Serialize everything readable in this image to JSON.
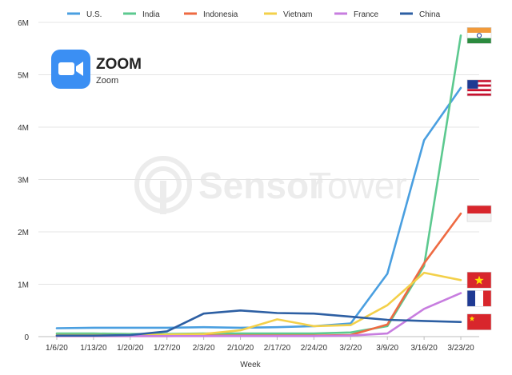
{
  "app": {
    "name": "ZOOM",
    "subtitle": "Zoom",
    "icon_color": "#3b8ff3"
  },
  "watermark": {
    "text_a": "Sensor",
    "text_b": "Tower"
  },
  "chart_data": {
    "type": "line",
    "title": "",
    "xlabel": "Week",
    "ylabel": "",
    "categories": [
      "1/6/20",
      "1/13/20",
      "1/20/20",
      "1/27/20",
      "2/3/20",
      "2/10/20",
      "2/17/20",
      "2/24/20",
      "3/2/20",
      "3/9/20",
      "3/16/20",
      "3/23/20"
    ],
    "ylim": [
      0,
      6000000
    ],
    "yticks": [
      0,
      1000000,
      2000000,
      3000000,
      4000000,
      5000000,
      6000000
    ],
    "ytick_labels": [
      "0",
      "1M",
      "2M",
      "3M",
      "4M",
      "5M",
      "6M"
    ],
    "grid": true,
    "legend_position": "top",
    "series": [
      {
        "name": "U.S.",
        "color": "#4a9fe0",
        "flag": "us",
        "values": [
          160000,
          170000,
          170000,
          170000,
          180000,
          170000,
          180000,
          200000,
          250000,
          1200000,
          3750000,
          4750000
        ]
      },
      {
        "name": "India",
        "color": "#5cc98f",
        "flag": "india",
        "values": [
          60000,
          60000,
          50000,
          50000,
          60000,
          60000,
          60000,
          60000,
          80000,
          200000,
          1350000,
          5750000
        ]
      },
      {
        "name": "Indonesia",
        "color": "#ee6a42",
        "flag": "indonesia",
        "values": [
          10000,
          10000,
          10000,
          10000,
          20000,
          20000,
          20000,
          20000,
          30000,
          230000,
          1400000,
          2350000
        ]
      },
      {
        "name": "Vietnam",
        "color": "#f3d04a",
        "flag": "vietnam",
        "values": [
          30000,
          30000,
          30000,
          40000,
          50000,
          120000,
          330000,
          200000,
          220000,
          600000,
          1220000,
          1080000
        ]
      },
      {
        "name": "France",
        "color": "#c77ddf",
        "flag": "france",
        "values": [
          10000,
          10000,
          10000,
          10000,
          10000,
          10000,
          10000,
          10000,
          20000,
          60000,
          530000,
          830000
        ]
      },
      {
        "name": "China",
        "color": "#2d5fa3",
        "flag": "china",
        "values": [
          20000,
          20000,
          30000,
          100000,
          440000,
          500000,
          450000,
          440000,
          380000,
          320000,
          300000,
          280000
        ]
      }
    ]
  }
}
